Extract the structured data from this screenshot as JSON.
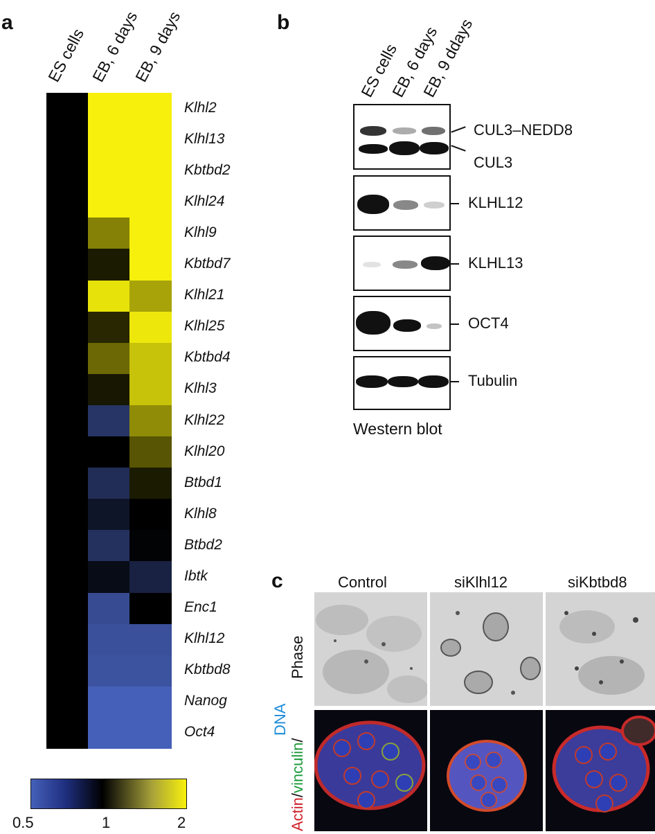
{
  "panel_a": {
    "letter": "a",
    "columns": [
      "ES cells",
      "EB, 6 days",
      "EB, 9 days"
    ],
    "genes": [
      "Klhl2",
      "Klhl13",
      "Kbtbd2",
      "Klhl24",
      "Klhl9",
      "Kbtbd7",
      "Klhl21",
      "Klhl25",
      "Kbtbd4",
      "Klhl3",
      "Klhl22",
      "Klhl20",
      "Btbd1",
      "Klhl8",
      "Btbd2",
      "Ibtk",
      "Enc1",
      "Klhl12",
      "Kbtbd8",
      "Nanog",
      "Oct4"
    ],
    "scale": {
      "min_label": "0.5",
      "mid_label": "1",
      "max_label": "2",
      "colors": {
        "low": "#4560b8",
        "mid": "#000000",
        "high": "#f7f00c"
      }
    }
  },
  "chart_data": {
    "type": "heatmap",
    "x": [
      "ES cells",
      "EB, 6 days",
      "EB, 9 days"
    ],
    "y": [
      "Klhl2",
      "Klhl13",
      "Kbtbd2",
      "Klhl24",
      "Klhl9",
      "Kbtbd7",
      "Klhl21",
      "Klhl25",
      "Kbtbd4",
      "Klhl3",
      "Klhl22",
      "Klhl20",
      "Btbd1",
      "Klhl8",
      "Btbd2",
      "Ibtk",
      "Enc1",
      "Klhl12",
      "Kbtbd8",
      "Nanog",
      "Oct4"
    ],
    "values": [
      [
        1,
        2,
        2
      ],
      [
        1,
        2,
        2
      ],
      [
        1,
        2,
        2
      ],
      [
        1,
        2,
        2
      ],
      [
        1,
        1.45,
        2
      ],
      [
        1,
        1.08,
        2
      ],
      [
        1,
        1.92,
        1.6
      ],
      [
        1,
        1.12,
        1.95
      ],
      [
        1,
        1.35,
        1.75
      ],
      [
        1,
        1.07,
        1.75
      ],
      [
        1,
        0.68,
        1.5
      ],
      [
        1,
        1.0,
        1.28
      ],
      [
        1,
        0.72,
        1.08
      ],
      [
        1,
        0.86,
        1.0
      ],
      [
        1,
        0.7,
        0.98
      ],
      [
        1,
        0.92,
        0.78
      ],
      [
        1,
        0.58,
        1.0
      ],
      [
        1,
        0.56,
        0.56
      ],
      [
        1,
        0.55,
        0.55
      ],
      [
        1,
        0.5,
        0.5
      ],
      [
        1,
        0.5,
        0.5
      ]
    ],
    "colorbar": {
      "min": 0.5,
      "mid": 1,
      "max": 2
    }
  },
  "panel_b": {
    "letter": "b",
    "lanes": [
      "ES cells",
      "EB, 6 days",
      "EB, 9 ddays"
    ],
    "blots": [
      {
        "labels": [
          "CUL3–NEDD8",
          "CUL3"
        ]
      },
      {
        "labels": [
          "KLHL12"
        ]
      },
      {
        "labels": [
          "KLHL13"
        ]
      },
      {
        "labels": [
          "OCT4"
        ]
      },
      {
        "labels": [
          "Tubulin"
        ]
      }
    ],
    "caption": "Western blot"
  },
  "panel_c": {
    "letter": "c",
    "columns": [
      "Control",
      "siKlhl12",
      "siKbtbd8"
    ],
    "row_phase": "Phase",
    "row_stain": {
      "actin": "Actin",
      "sep1": "/",
      "vinculin": "vinculin",
      "sep2": "/",
      "dna": "DNA"
    },
    "stain_colors": {
      "actin": "#d0202a",
      "vinculin": "#1a9a3a",
      "dna": "#1e8cd8"
    }
  }
}
